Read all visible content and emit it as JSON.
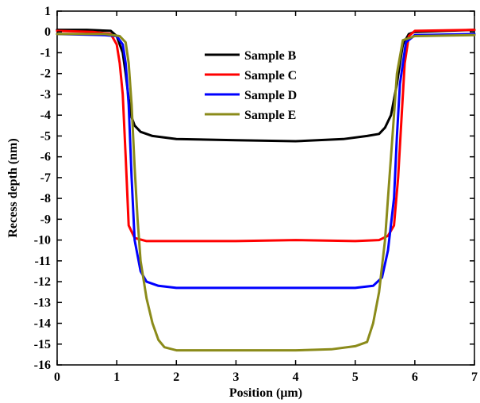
{
  "chart_data": {
    "type": "line",
    "title": "",
    "xlabel": "Position (μm)",
    "ylabel": "Recess depth (nm)",
    "xlim": [
      0,
      7
    ],
    "ylim": [
      -16,
      1
    ],
    "x_ticks": [
      0,
      1,
      2,
      3,
      4,
      5,
      6,
      7
    ],
    "y_ticks": [
      1,
      0,
      -1,
      -2,
      -3,
      -4,
      -5,
      -6,
      -7,
      -8,
      -9,
      -10,
      -11,
      -12,
      -13,
      -14,
      -15,
      -16
    ],
    "grid": false,
    "legend_position": "top-center",
    "series": [
      {
        "name": "Sample B",
        "color": "#000000",
        "x": [
          0,
          0.5,
          0.9,
          1.0,
          1.1,
          1.15,
          1.2,
          1.25,
          1.3,
          1.4,
          1.6,
          2.0,
          3.0,
          4.0,
          4.8,
          5.2,
          5.4,
          5.5,
          5.6,
          5.7,
          5.75,
          5.8,
          5.9,
          6.0,
          7.0
        ],
        "y": [
          0.1,
          0.1,
          0.05,
          -0.2,
          -1.0,
          -2.0,
          -3.2,
          -4.1,
          -4.5,
          -4.8,
          -5.0,
          -5.15,
          -5.2,
          -5.25,
          -5.15,
          -5.0,
          -4.9,
          -4.6,
          -4.0,
          -2.5,
          -1.5,
          -0.6,
          -0.1,
          0.0,
          0.1
        ]
      },
      {
        "name": "Sample C",
        "color": "#ff0000",
        "x": [
          0,
          0.6,
          0.9,
          1.0,
          1.05,
          1.1,
          1.15,
          1.2,
          1.3,
          1.5,
          2.0,
          3.0,
          4.0,
          5.0,
          5.4,
          5.55,
          5.65,
          5.72,
          5.78,
          5.83,
          5.9,
          6.0,
          7.0
        ],
        "y": [
          0.05,
          0.0,
          -0.1,
          -0.6,
          -1.5,
          -3.0,
          -6.0,
          -9.3,
          -9.9,
          -10.05,
          -10.05,
          -10.05,
          -10.0,
          -10.05,
          -10.0,
          -9.8,
          -9.3,
          -7.0,
          -4.0,
          -1.5,
          -0.2,
          0.05,
          0.1
        ]
      },
      {
        "name": "Sample D",
        "color": "#0000ff",
        "x": [
          0,
          0.8,
          1.0,
          1.1,
          1.15,
          1.2,
          1.25,
          1.3,
          1.4,
          1.5,
          1.7,
          2.0,
          3.0,
          4.0,
          5.0,
          5.3,
          5.45,
          5.55,
          5.65,
          5.7,
          5.75,
          5.85,
          6.0,
          7.0
        ],
        "y": [
          -0.1,
          -0.15,
          -0.2,
          -0.6,
          -1.5,
          -3.5,
          -7.0,
          -10.0,
          -11.5,
          -12.0,
          -12.2,
          -12.3,
          -12.3,
          -12.3,
          -12.3,
          -12.2,
          -11.8,
          -10.5,
          -8.0,
          -5.0,
          -2.5,
          -0.5,
          -0.15,
          -0.1
        ]
      },
      {
        "name": "Sample E",
        "color": "#8b8b1a",
        "x": [
          0,
          0.8,
          1.05,
          1.15,
          1.2,
          1.25,
          1.3,
          1.35,
          1.4,
          1.5,
          1.6,
          1.7,
          1.8,
          2.0,
          3.0,
          4.0,
          4.6,
          5.0,
          5.2,
          5.3,
          5.4,
          5.5,
          5.55,
          5.6,
          5.65,
          5.7,
          5.8,
          6.0,
          7.0
        ],
        "y": [
          -0.1,
          -0.1,
          -0.2,
          -0.5,
          -1.5,
          -3.5,
          -6.5,
          -9.0,
          -11.0,
          -12.8,
          -14.0,
          -14.8,
          -15.15,
          -15.3,
          -15.3,
          -15.3,
          -15.25,
          -15.1,
          -14.9,
          -14.0,
          -12.5,
          -10.0,
          -8.0,
          -6.0,
          -4.0,
          -2.0,
          -0.4,
          -0.2,
          -0.15
        ]
      }
    ]
  }
}
